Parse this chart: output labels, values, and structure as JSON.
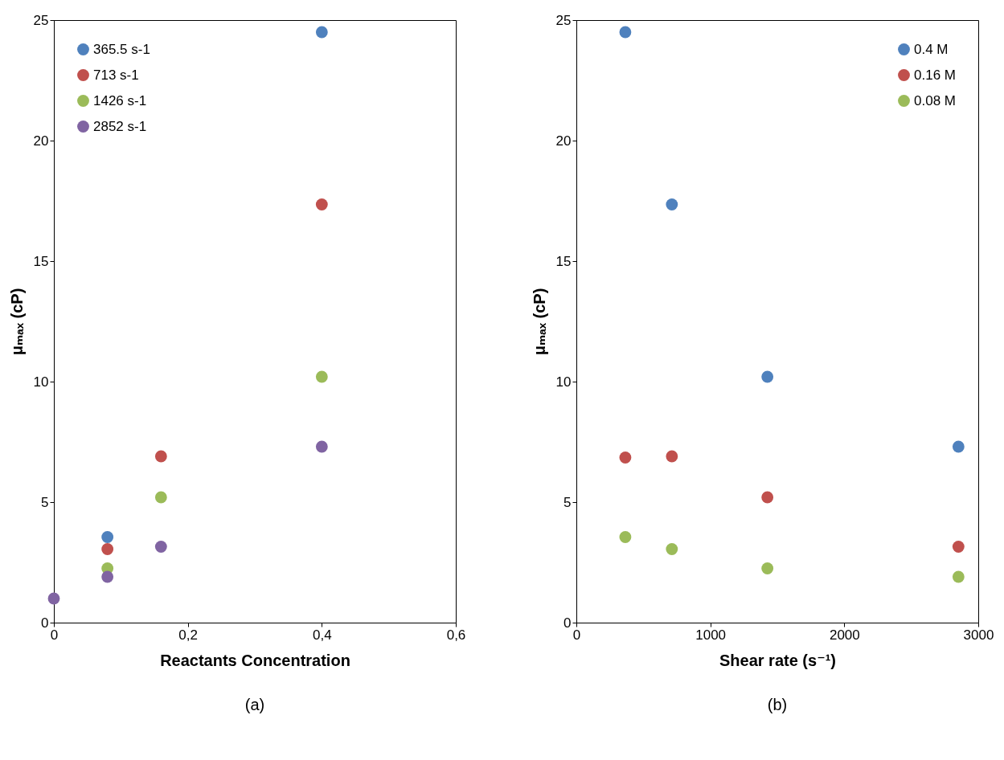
{
  "chart_data": [
    {
      "type": "scatter",
      "title": "(a)",
      "xlabel": "Reactants Concentration",
      "ylabel": "μₘₐₓ (cP)",
      "x": [
        0,
        0.08,
        0.16,
        0.4
      ],
      "series": [
        {
          "name": "365.5 s-1",
          "color": "#4f81bd",
          "values": [
            null,
            3.55,
            null,
            24.5
          ]
        },
        {
          "name": "713 s-1",
          "color": "#c0504d",
          "values": [
            null,
            3.05,
            6.9,
            17.35
          ]
        },
        {
          "name": "1426 s-1",
          "color": "#9bbb59",
          "values": [
            null,
            2.25,
            5.2,
            10.2
          ]
        },
        {
          "name": "2852 s-1",
          "color": "#8064a2",
          "values": [
            1,
            1.9,
            3.15,
            7.3
          ]
        }
      ],
      "xlim": [
        0,
        0.6
      ],
      "xticks": [
        0,
        {
          "value": 0.2,
          "label": "0,2"
        },
        {
          "value": 0.4,
          "label": "0,4"
        },
        {
          "value": 0.6,
          "label": "0,6"
        }
      ],
      "ylim": [
        0,
        25
      ],
      "yticks": [
        0,
        5,
        10,
        15,
        20,
        25
      ],
      "grid": false,
      "legend": "top left",
      "marker": "circle"
    },
    {
      "type": "scatter",
      "title": "(b)",
      "xlabel": "Shear rate (s⁻¹)",
      "ylabel": "μₘₐₓ (cP)",
      "x": [
        365.5,
        713,
        1426,
        2852
      ],
      "series": [
        {
          "name": "0.4 M",
          "color": "#4f81bd",
          "values": [
            24.5,
            17.35,
            10.2,
            7.3
          ]
        },
        {
          "name": "0.16 M",
          "color": "#c0504d",
          "values": [
            6.85,
            6.9,
            5.2,
            3.15
          ]
        },
        {
          "name": "0.08 M",
          "color": "#9bbb59",
          "values": [
            3.55,
            3.05,
            2.25,
            1.9
          ]
        }
      ],
      "xlim": [
        0,
        3000
      ],
      "xticks": [
        0,
        {
          "value": 1000,
          "label": "1000"
        },
        {
          "value": 2000,
          "label": "2000"
        },
        {
          "value": 3000,
          "label": "3000"
        }
      ],
      "ylim": [
        0,
        25
      ],
      "yticks": [
        0,
        5,
        10,
        15,
        20,
        25
      ],
      "grid": false,
      "legend": "top right",
      "marker": "circle"
    }
  ]
}
